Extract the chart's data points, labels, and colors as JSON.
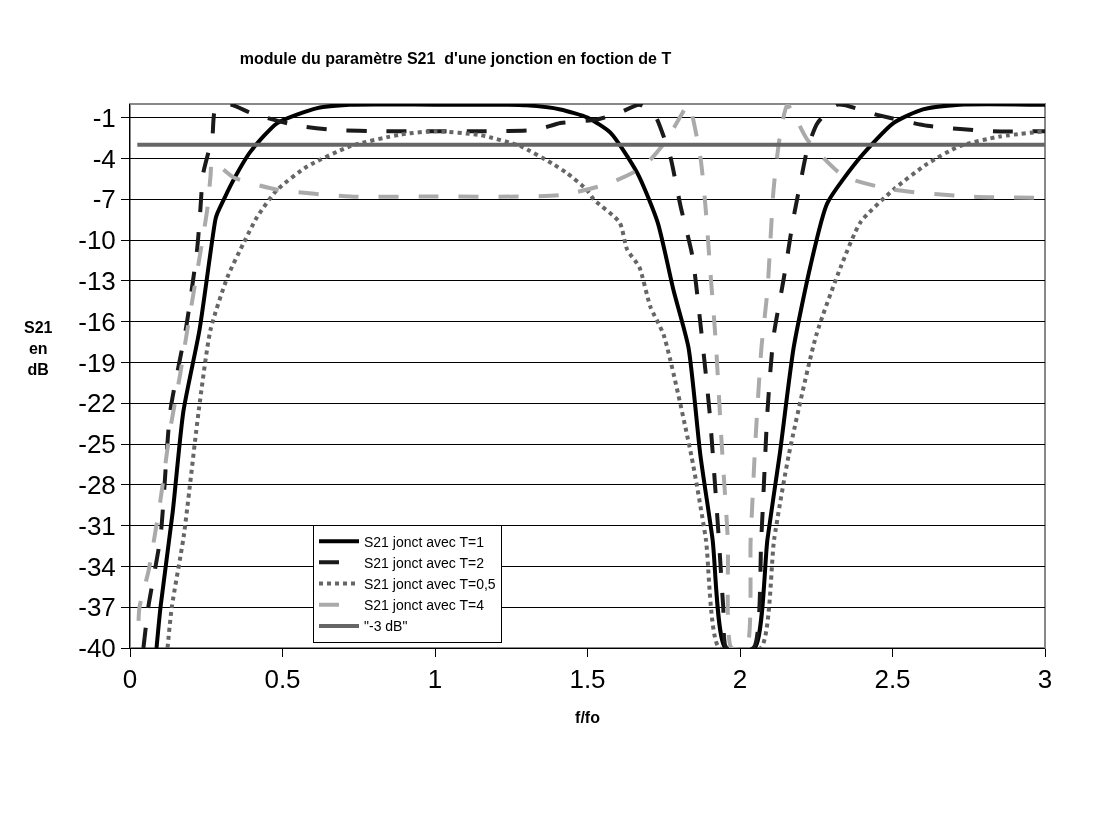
{
  "chart_data": {
    "type": "line",
    "title": "module du paramètre S21  d'une jonction en foction de T",
    "xlabel": "f/fo",
    "ylabel": "S21 en dB",
    "xlim": [
      0,
      3
    ],
    "xticks": [
      0,
      0.5,
      1,
      1.5,
      2,
      2.5,
      3
    ],
    "ylim": [
      -40,
      0
    ],
    "yticks": [
      -1,
      -4,
      -7,
      -10,
      -13,
      -16,
      -19,
      -22,
      -25,
      -28,
      -31,
      -34,
      -37,
      -40
    ],
    "grid": "y",
    "legend": "bottom",
    "marker": "none",
    "series": [
      {
        "name": "S21 jonct avec T=1",
        "color": "#000000",
        "line_style": "solid",
        "x": [
          0.087,
          0.1,
          0.14,
          0.175,
          0.228,
          0.28,
          0.287,
          0.339,
          0.395,
          0.483,
          0.614,
          0.72,
          1.0,
          1.2,
          1.3,
          1.411,
          1.5,
          1.575,
          1.664,
          1.73,
          1.782,
          1.831,
          1.87,
          1.91,
          1.952,
          2.048,
          2.09,
          2.13,
          2.176,
          2.23,
          2.286,
          2.395,
          2.503,
          2.6,
          2.72,
          3.0
        ],
        "values": [
          -40,
          -37,
          -30,
          -22.6,
          -16.6,
          -8.5,
          -8.0,
          -5.6,
          -3.5,
          -1.4,
          -0.3,
          -0.05,
          -0.05,
          -0.05,
          -0.1,
          -0.4,
          -1.0,
          -2.1,
          -5.1,
          -8.7,
          -13.7,
          -17.9,
          -25.8,
          -32,
          -40,
          -40,
          -32,
          -25.8,
          -17.9,
          -12,
          -7.3,
          -3.9,
          -1.4,
          -0.4,
          -0.05,
          -0.05
        ]
      },
      {
        "name": "S21 jonct avec T=2",
        "color": "#1a1a1a",
        "line_style": "dashed",
        "x": [
          0.044,
          0.06,
          0.1,
          0.132,
          0.185,
          0.22,
          0.23,
          0.24,
          0.27,
          0.28,
          0.33,
          0.395,
          0.47,
          0.55,
          0.668,
          0.83,
          1.0,
          1.17,
          1.332,
          1.411,
          1.53,
          1.605,
          1.67,
          1.72,
          1.75,
          1.772,
          1.805,
          1.844,
          1.87,
          1.9,
          1.93,
          1.945,
          1.956,
          2.044,
          2.07,
          2.09,
          2.11,
          2.143,
          2.176,
          2.198,
          2.22,
          2.254,
          2.32,
          2.45,
          2.614,
          2.83,
          3.0
        ],
        "values": [
          -40,
          -37,
          -31.8,
          -22.6,
          -16.3,
          -10.7,
          -8.0,
          -5.1,
          -2.4,
          -0.4,
          -0.05,
          -0.65,
          -1.15,
          -1.6,
          -1.9,
          -2.0,
          -2.0,
          -2.0,
          -1.9,
          -1.4,
          -1.15,
          -0.65,
          -0.05,
          -0.8,
          -2.4,
          -3.9,
          -7.5,
          -11.2,
          -16.1,
          -22.6,
          -31.8,
          -37,
          -40,
          -40,
          -31.8,
          -22.6,
          -17.1,
          -12.9,
          -8.3,
          -5.8,
          -3.4,
          -1.4,
          -0.05,
          -0.8,
          -1.6,
          -2.0,
          -2.0
        ]
      },
      {
        "name": "S21 jonct avec T=0,5",
        "color": "#666666",
        "line_style": "dotted",
        "x": [
          0.123,
          0.137,
          0.176,
          0.225,
          0.264,
          0.32,
          0.373,
          0.417,
          0.483,
          0.581,
          0.723,
          0.887,
          1.0,
          1.15,
          1.28,
          1.386,
          1.434,
          1.497,
          1.52,
          1.605,
          1.63,
          1.67,
          1.706,
          1.75,
          1.84,
          1.888,
          1.932,
          2.068,
          2.112,
          2.16,
          2.25,
          2.33,
          2.395,
          2.503,
          2.614,
          2.72,
          2.85,
          3.0
        ],
        "values": [
          -40,
          -37,
          -31.8,
          -22.6,
          -16.6,
          -12.7,
          -10.2,
          -8.3,
          -6.3,
          -4.6,
          -3.1,
          -2.25,
          -2.0,
          -2.3,
          -3.1,
          -4.4,
          -5.1,
          -6.3,
          -7.0,
          -8.7,
          -10.7,
          -12,
          -14.9,
          -17,
          -25.8,
          -32,
          -40,
          -40,
          -32,
          -25.8,
          -17,
          -12,
          -8.7,
          -6.3,
          -4.4,
          -3.1,
          -2.4,
          -2.0
        ]
      },
      {
        "name": "S21 jonct avec T=4",
        "color": "#aaaaaa",
        "line_style": "dashed",
        "x": [
          0.028,
          0.031,
          0.061,
          0.1,
          0.132,
          0.165,
          0.188,
          0.253,
          0.264,
          0.27,
          0.34,
          0.483,
          0.723,
          1.0,
          1.411,
          1.575,
          1.684,
          1.761,
          1.805,
          1.831,
          1.87,
          1.887,
          1.903,
          1.92,
          1.94,
          1.96,
          1.972,
          2.021,
          2.035,
          2.05,
          2.07,
          2.09,
          2.11,
          2.13,
          2.155,
          2.18,
          2.22,
          2.34,
          2.503,
          2.75,
          3.0
        ],
        "values": [
          -38,
          -37,
          -34.3,
          -29.1,
          -23.9,
          -19.8,
          -16.6,
          -7.8,
          -5.3,
          -4.2,
          -5.4,
          -6.3,
          -6.8,
          -6.8,
          -6.7,
          -5.8,
          -4.6,
          -2.6,
          -0.9,
          -0.05,
          -3.9,
          -7.6,
          -12.4,
          -17.3,
          -25,
          -32,
          -40,
          -40,
          -32,
          -25,
          -18,
          -13.7,
          -6.3,
          -2.5,
          -0.05,
          -0.9,
          -2.6,
          -5.3,
          -6.3,
          -6.8,
          -6.9
        ]
      },
      {
        "name": "\"-3 dB\"",
        "color": "#666666",
        "line_style": "solid",
        "x": [
          0.024,
          3.0
        ],
        "values": [
          -3,
          -3
        ]
      }
    ]
  }
}
